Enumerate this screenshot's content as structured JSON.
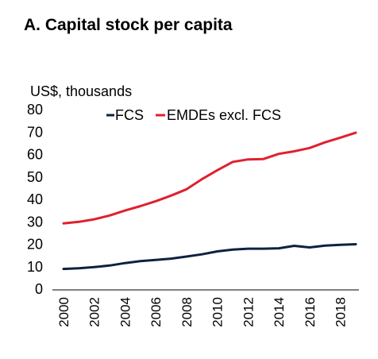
{
  "chart_data": {
    "type": "line",
    "title": "A. Capital stock per capita",
    "ylabel": "US$, thousands",
    "xlabel": "",
    "ylim": [
      0,
      80
    ],
    "xlim": [
      2000,
      2019
    ],
    "yticks": [
      0,
      10,
      20,
      30,
      40,
      50,
      60,
      70,
      80
    ],
    "xticks": [
      2000,
      2002,
      2004,
      2006,
      2008,
      2010,
      2012,
      2014,
      2016,
      2018
    ],
    "grid": false,
    "legend_position": "top",
    "x": [
      2000,
      2001,
      2002,
      2003,
      2004,
      2005,
      2006,
      2007,
      2008,
      2009,
      2010,
      2011,
      2012,
      2013,
      2014,
      2015,
      2016,
      2017,
      2018,
      2019
    ],
    "series": [
      {
        "name": "FCS",
        "color": "#0d2240",
        "values": [
          9,
          9.3,
          9.8,
          10.5,
          11.6,
          12.5,
          13,
          13.6,
          14.5,
          15.5,
          16.8,
          17.6,
          18,
          18,
          18.2,
          19.3,
          18.6,
          19.4,
          19.7,
          20
        ]
      },
      {
        "name": "EMDEs excl. FCS",
        "color": "#e0202e",
        "values": [
          29.3,
          30,
          31.1,
          32.8,
          35,
          37,
          39.2,
          41.7,
          44.5,
          49,
          53,
          56.7,
          57.8,
          58,
          60.3,
          61.4,
          62.9,
          65.4,
          67.5,
          69.7
        ]
      }
    ]
  }
}
